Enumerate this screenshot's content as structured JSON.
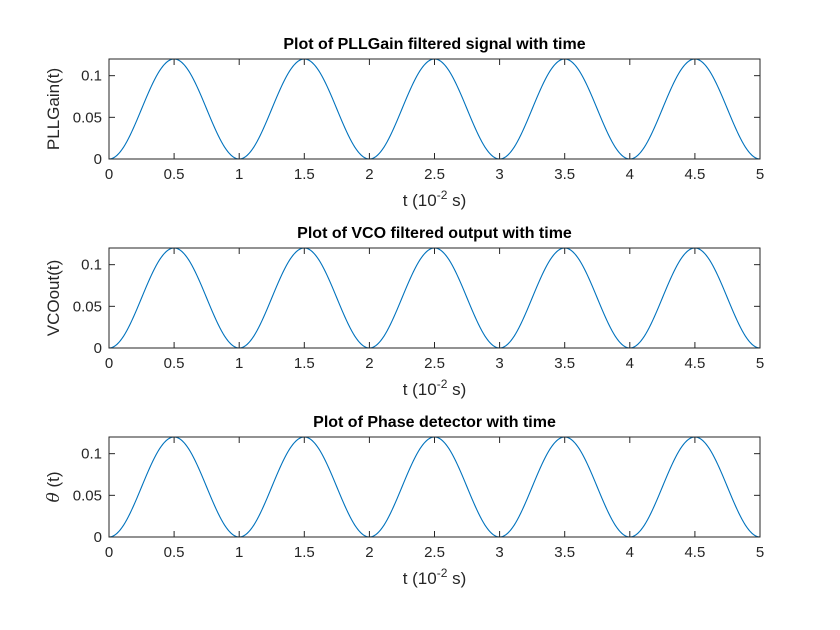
{
  "chart_data": [
    {
      "type": "line",
      "title": "Plot of PLLGain filtered signal with time",
      "xlabel": "t (10",
      "xlabel_exp": "-2",
      "xlabel_suffix": " s)",
      "ylabel": "PLLGain(t)",
      "ylabel_italic_symbol": "",
      "xlim": [
        0,
        5
      ],
      "ylim": [
        0,
        0.12
      ],
      "xticks": [
        "0",
        "0.5",
        "1",
        "1.5",
        "2",
        "2.5",
        "3",
        "3.5",
        "4",
        "4.5",
        "5"
      ],
      "yticks": [
        "0",
        "0.05",
        "0.1"
      ],
      "ytick_values": [
        0,
        0.05,
        0.1
      ],
      "grid": false,
      "color": "#0072BD",
      "series": [
        {
          "x": [
            0,
            0.5,
            1,
            1.5,
            2,
            2.5,
            3,
            3.5,
            4,
            4.5,
            5
          ],
          "y": [
            0,
            0.12,
            0,
            0.12,
            0,
            0.12,
            0,
            0.12,
            0,
            0.12,
            0
          ]
        }
      ]
    },
    {
      "type": "line",
      "title": "Plot of VCO filtered output with time",
      "xlabel": "t (10",
      "xlabel_exp": "-2",
      "xlabel_suffix": " s)",
      "ylabel": "VCOout(t)",
      "ylabel_italic_symbol": "",
      "xlim": [
        0,
        5
      ],
      "ylim": [
        0,
        0.12
      ],
      "xticks": [
        "0",
        "0.5",
        "1",
        "1.5",
        "2",
        "2.5",
        "3",
        "3.5",
        "4",
        "4.5",
        "5"
      ],
      "yticks": [
        "0",
        "0.05",
        "0.1"
      ],
      "ytick_values": [
        0,
        0.05,
        0.1
      ],
      "grid": false,
      "color": "#0072BD",
      "series": [
        {
          "x": [
            0,
            0.5,
            1,
            1.5,
            2,
            2.5,
            3,
            3.5,
            4,
            4.5,
            5
          ],
          "y": [
            0,
            0.12,
            0,
            0.12,
            0,
            0.12,
            0,
            0.12,
            0,
            0.12,
            0
          ]
        }
      ]
    },
    {
      "type": "line",
      "title": "Plot of Phase detector with time",
      "xlabel": "t (10",
      "xlabel_exp": "-2",
      "xlabel_suffix": " s)",
      "ylabel": " (t)",
      "ylabel_italic_symbol": "θ",
      "xlim": [
        0,
        5
      ],
      "ylim": [
        0,
        0.12
      ],
      "xticks": [
        "0",
        "0.5",
        "1",
        "1.5",
        "2",
        "2.5",
        "3",
        "3.5",
        "4",
        "4.5",
        "5"
      ],
      "yticks": [
        "0",
        "0.05",
        "0.1"
      ],
      "ytick_values": [
        0,
        0.05,
        0.1
      ],
      "grid": false,
      "color": "#0072BD",
      "series": [
        {
          "x": [
            0,
            0.5,
            1,
            1.5,
            2,
            2.5,
            3,
            3.5,
            4,
            4.5,
            5
          ],
          "y": [
            0,
            0.12,
            0,
            0.12,
            0,
            0.12,
            0,
            0.12,
            0,
            0.12,
            0
          ]
        }
      ]
    }
  ]
}
